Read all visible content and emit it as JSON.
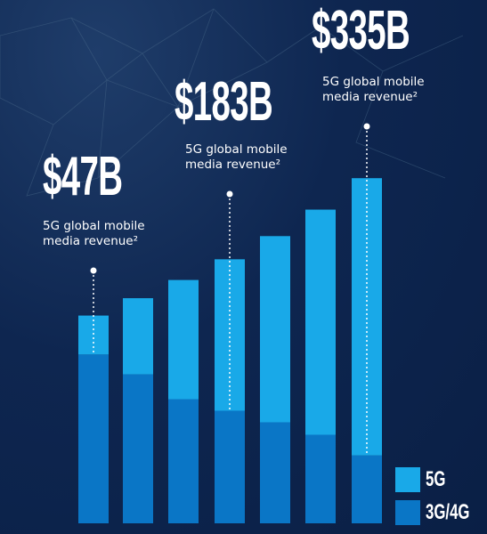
{
  "chart_data": {
    "type": "stacked-bar",
    "series": [
      {
        "name": "3G/4G",
        "color": "#0a76c6",
        "values": [
          204,
          180,
          150,
          136,
          122,
          107,
          82
        ]
      },
      {
        "name": "5G",
        "color": "#19a9e8",
        "values": [
          47,
          92,
          144,
          183,
          225,
          272,
          335
        ],
        "value_labels": [
          "$47B",
          null,
          null,
          "$183B",
          null,
          null,
          "$335B"
        ]
      }
    ],
    "annotations": [
      "5G global mobile media revenue²",
      "5G global mobile media revenue²",
      "5G global mobile media revenue²"
    ],
    "legend": "bottom-right"
  }
}
